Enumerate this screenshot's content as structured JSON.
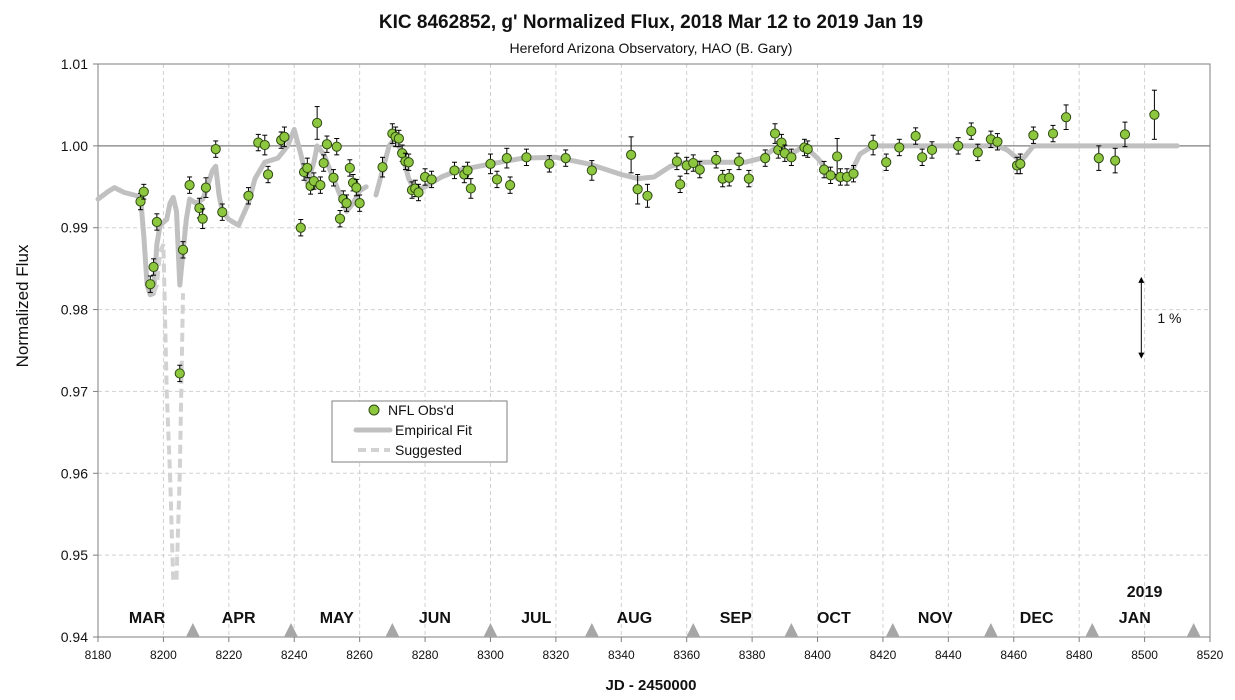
{
  "chart_data": {
    "type": "scatter",
    "title": "KIC 8462852, g' Normalized Flux, 2018 Mar 12 to 2019 Jan 19",
    "subtitle": "Hereford Arizona Observatory, HAO (B. Gary)",
    "xlabel": "JD - 2450000",
    "ylabel": "Normalized Flux",
    "xlim": [
      8180,
      8520
    ],
    "ylim": [
      0.94,
      1.01
    ],
    "x_ticks": [
      8180,
      8200,
      8220,
      8240,
      8260,
      8280,
      8300,
      8320,
      8340,
      8360,
      8380,
      8400,
      8420,
      8440,
      8460,
      8480,
      8500,
      8520
    ],
    "y_ticks": [
      0.94,
      0.95,
      0.96,
      0.97,
      0.98,
      0.99,
      1.0,
      1.01
    ],
    "y_tick_labels": [
      "0.94",
      "0.95",
      "0.96",
      "0.97",
      "0.98",
      "0.99",
      "1.00",
      "1.01"
    ],
    "grid": "dashed vertical and horizontal",
    "legend": {
      "position": "center-left",
      "entries": [
        "NFL Obs'd",
        "Empirical Fit",
        "Suggested"
      ]
    },
    "colors": {
      "obs_fill": "#8dc63f",
      "obs_stroke": "#2e4a10",
      "fit": "#c0c0c0",
      "suggested": "#d2d2d2",
      "month_marker": "#a6a6a6"
    },
    "month_labels": [
      {
        "label": "MAR",
        "x": 8195
      },
      {
        "label": "APR",
        "x": 8223
      },
      {
        "label": "MAY",
        "x": 8253
      },
      {
        "label": "JUN",
        "x": 8283
      },
      {
        "label": "JUL",
        "x": 8314
      },
      {
        "label": "AUG",
        "x": 8344
      },
      {
        "label": "SEP",
        "x": 8375
      },
      {
        "label": "OCT",
        "x": 8405
      },
      {
        "label": "NOV",
        "x": 8436
      },
      {
        "label": "DEC",
        "x": 8467
      },
      {
        "label": "JAN",
        "x": 8497
      }
    ],
    "year_label": {
      "label": "2019",
      "x": 8500
    },
    "month_markers_x": [
      8209,
      8239,
      8270,
      8300,
      8331,
      8362,
      8392,
      8423,
      8453,
      8484,
      8515
    ],
    "annotation": {
      "label": "1 %",
      "x": 8499,
      "y_from": 0.984,
      "y_to": 0.974
    },
    "series": [
      {
        "name": "NFL Obs'd",
        "type": "scatter",
        "points": [
          [
            8193,
            0.9932,
            0.001
          ],
          [
            8194,
            0.9944,
            0.0009
          ],
          [
            8196,
            0.9831,
            0.001
          ],
          [
            8197,
            0.9852,
            0.001
          ],
          [
            8198,
            0.9907,
            0.001
          ],
          [
            8205,
            0.9722,
            0.001
          ],
          [
            8206,
            0.9873,
            0.001
          ],
          [
            8208,
            0.9952,
            0.001
          ],
          [
            8211,
            0.9924,
            0.0012
          ],
          [
            8212,
            0.9911,
            0.0012
          ],
          [
            8213,
            0.9949,
            0.0012
          ],
          [
            8216,
            0.9996,
            0.001
          ],
          [
            8218,
            0.9919,
            0.001
          ],
          [
            8226,
            0.9939,
            0.001
          ],
          [
            8229,
            1.0004,
            0.001
          ],
          [
            8231,
            1.0001,
            0.0012
          ],
          [
            8232,
            0.9965,
            0.001
          ],
          [
            8236,
            1.0007,
            0.001
          ],
          [
            8237,
            1.0011,
            0.0012
          ],
          [
            8242,
            0.99,
            0.001
          ],
          [
            8243,
            0.9968,
            0.001
          ],
          [
            8244,
            0.9973,
            0.0012
          ],
          [
            8245,
            0.9951,
            0.001
          ],
          [
            8246,
            0.9957,
            0.001
          ],
          [
            8247,
            1.0028,
            0.002
          ],
          [
            8248,
            0.9952,
            0.001
          ],
          [
            8249,
            0.9979,
            0.001
          ],
          [
            8250,
            1.0002,
            0.001
          ],
          [
            8252,
            0.9961,
            0.001
          ],
          [
            8253,
            0.9999,
            0.001
          ],
          [
            8254,
            0.9911,
            0.001
          ],
          [
            8255,
            0.9935,
            0.001
          ],
          [
            8256,
            0.993,
            0.001
          ],
          [
            8257,
            0.9973,
            0.001
          ],
          [
            8258,
            0.9955,
            0.001
          ],
          [
            8259,
            0.9949,
            0.001
          ],
          [
            8260,
            0.993,
            0.001
          ],
          [
            8267,
            0.9974,
            0.0012
          ],
          [
            8270,
            1.0015,
            0.0012
          ],
          [
            8271,
            1.0011,
            0.0012
          ],
          [
            8272,
            1.0009,
            0.001
          ],
          [
            8273,
            0.9991,
            0.001
          ],
          [
            8274,
            0.9981,
            0.001
          ],
          [
            8275,
            0.998,
            0.001
          ],
          [
            8276,
            0.9946,
            0.001
          ],
          [
            8277,
            0.9948,
            0.001
          ],
          [
            8278,
            0.9943,
            0.001
          ],
          [
            8280,
            0.9962,
            0.001
          ],
          [
            8282,
            0.9959,
            0.001
          ],
          [
            8289,
            0.997,
            0.001
          ],
          [
            8292,
            0.9965,
            0.001
          ],
          [
            8293,
            0.997,
            0.001
          ],
          [
            8294,
            0.9948,
            0.0012
          ],
          [
            8300,
            0.9978,
            0.0012
          ],
          [
            8302,
            0.9959,
            0.001
          ],
          [
            8305,
            0.9985,
            0.0012
          ],
          [
            8306,
            0.9952,
            0.001
          ],
          [
            8311,
            0.9986,
            0.001
          ],
          [
            8318,
            0.9978,
            0.001
          ],
          [
            8323,
            0.9985,
            0.001
          ],
          [
            8331,
            0.997,
            0.0012
          ],
          [
            8343,
            0.9989,
            0.0022
          ],
          [
            8345,
            0.9947,
            0.0018
          ],
          [
            8348,
            0.9939,
            0.0014
          ],
          [
            8357,
            0.9981,
            0.001
          ],
          [
            8358,
            0.9953,
            0.001
          ],
          [
            8360,
            0.9976,
            0.001
          ],
          [
            8362,
            0.9979,
            0.001
          ],
          [
            8364,
            0.9971,
            0.001
          ],
          [
            8369,
            0.9983,
            0.001
          ],
          [
            8371,
            0.996,
            0.001
          ],
          [
            8373,
            0.9961,
            0.001
          ],
          [
            8376,
            0.9981,
            0.001
          ],
          [
            8379,
            0.996,
            0.001
          ],
          [
            8384,
            0.9985,
            0.001
          ],
          [
            8387,
            1.0015,
            0.0012
          ],
          [
            8388,
            0.9995,
            0.001
          ],
          [
            8389,
            1.0004,
            0.001
          ],
          [
            8390,
            0.9991,
            0.001
          ],
          [
            8392,
            0.9986,
            0.001
          ],
          [
            8396,
            0.9998,
            0.001
          ],
          [
            8397,
            0.9996,
            0.001
          ],
          [
            8402,
            0.9971,
            0.001
          ],
          [
            8404,
            0.9964,
            0.001
          ],
          [
            8406,
            0.9987,
            0.0022
          ],
          [
            8407,
            0.9962,
            0.001
          ],
          [
            8409,
            0.9962,
            0.001
          ],
          [
            8411,
            0.9966,
            0.001
          ],
          [
            8417,
            1.0001,
            0.0012
          ],
          [
            8421,
            0.998,
            0.001
          ],
          [
            8425,
            0.9998,
            0.001
          ],
          [
            8430,
            1.0012,
            0.001
          ],
          [
            8432,
            0.9986,
            0.001
          ],
          [
            8435,
            0.9995,
            0.001
          ],
          [
            8443,
            1.0,
            0.001
          ],
          [
            8447,
            1.0018,
            0.001
          ],
          [
            8449,
            0.9992,
            0.001
          ],
          [
            8453,
            1.0008,
            0.001
          ],
          [
            8455,
            1.0005,
            0.001
          ],
          [
            8461,
            0.9976,
            0.001
          ],
          [
            8462,
            0.9978,
            0.0012
          ],
          [
            8466,
            1.0013,
            0.001
          ],
          [
            8472,
            1.0015,
            0.001
          ],
          [
            8476,
            1.0035,
            0.0015
          ],
          [
            8486,
            0.9985,
            0.0015
          ],
          [
            8491,
            0.9982,
            0.0015
          ],
          [
            8494,
            1.0014,
            0.0015
          ],
          [
            8503,
            1.0038,
            0.003
          ]
        ]
      },
      {
        "name": "Empirical Fit",
        "type": "line",
        "points": [
          [
            8180,
            0.9935
          ],
          [
            8183,
            0.9944
          ],
          [
            8185,
            0.9949
          ],
          [
            8188,
            0.9943
          ],
          [
            8191,
            0.994
          ],
          [
            8193,
            0.9938
          ],
          [
            8194,
            0.989
          ],
          [
            8195,
            0.983
          ],
          [
            8196,
            0.9818
          ],
          [
            8197,
            0.982
          ],
          [
            8198,
            0.988
          ],
          [
            8199,
            0.9903
          ],
          [
            8201,
            0.991
          ],
          [
            8202,
            0.993
          ],
          [
            8203,
            0.9937
          ],
          [
            8204,
            0.992
          ],
          [
            8205,
            0.983
          ],
          [
            8206,
            0.987
          ],
          [
            8207,
            0.991
          ],
          [
            8208,
            0.9935
          ],
          [
            8210,
            0.993
          ],
          [
            8212,
            0.9935
          ],
          [
            8213,
            0.9945
          ],
          [
            8215,
            0.997
          ],
          [
            8216,
            0.9975
          ],
          [
            8217,
            0.994
          ],
          [
            8218,
            0.992
          ],
          [
            8220,
            0.991
          ],
          [
            8223,
            0.9903
          ],
          [
            8226,
            0.993
          ],
          [
            8228,
            0.996
          ],
          [
            8231,
            0.998
          ],
          [
            8235,
            0.9985
          ],
          [
            8238,
            1.0
          ],
          [
            8240,
            1.002
          ],
          [
            8242,
            0.999
          ],
          [
            8244,
            0.9955
          ],
          [
            8246,
            0.998
          ],
          [
            8247,
            1.0
          ],
          [
            8249,
            0.999
          ],
          [
            8252,
            0.996
          ],
          [
            8254,
            0.994
          ],
          [
            8256,
            0.992
          ],
          [
            8258,
            0.993
          ],
          [
            8260,
            0.9945
          ],
          [
            8262,
            0.995
          ]
        ]
      },
      {
        "name": "Empirical Fit (cont.)",
        "type": "line",
        "points": [
          [
            8265,
            0.994
          ],
          [
            8267,
            0.997
          ],
          [
            8269,
            1.0
          ],
          [
            8271,
            1.001
          ],
          [
            8273,
            0.999
          ],
          [
            8275,
            0.996
          ],
          [
            8277,
            0.9945
          ],
          [
            8280,
            0.995
          ],
          [
            8285,
            0.9962
          ],
          [
            8290,
            0.997
          ],
          [
            8300,
            0.9978
          ],
          [
            8310,
            0.9985
          ],
          [
            8320,
            0.9986
          ],
          [
            8330,
            0.9978
          ],
          [
            8340,
            0.9965
          ],
          [
            8345,
            0.996
          ],
          [
            8350,
            0.9962
          ],
          [
            8355,
            0.9975
          ],
          [
            8360,
            0.998
          ],
          [
            8370,
            0.998
          ],
          [
            8378,
            0.998
          ],
          [
            8383,
            0.9985
          ],
          [
            8388,
            1.0
          ],
          [
            8392,
            0.999
          ],
          [
            8396,
            1.0
          ],
          [
            8400,
            0.9985
          ],
          [
            8404,
            0.9965
          ],
          [
            8407,
            0.9958
          ],
          [
            8410,
            0.9965
          ],
          [
            8413,
            0.999
          ],
          [
            8417,
            1.0
          ],
          [
            8422,
            1.0
          ],
          [
            8430,
            1.0
          ],
          [
            8440,
            1.0
          ],
          [
            8450,
            1.0
          ],
          [
            8455,
            1.0
          ],
          [
            8458,
            0.9995
          ],
          [
            8461,
            0.9985
          ],
          [
            8463,
            0.9985
          ],
          [
            8466,
            1.0
          ],
          [
            8470,
            1.0
          ],
          [
            8480,
            1.0
          ],
          [
            8490,
            1.0
          ],
          [
            8500,
            1.0
          ],
          [
            8510,
            1.0
          ]
        ]
      },
      {
        "name": "Suggested",
        "type": "line",
        "points": [
          [
            8197,
            0.982
          ],
          [
            8198,
            0.983
          ],
          [
            8199,
            0.987
          ],
          [
            8200,
            0.988
          ],
          [
            8201,
            0.97
          ],
          [
            8202,
            0.96
          ],
          [
            8203,
            0.947
          ]
        ]
      },
      {
        "name": "Suggested (cont.)",
        "type": "line",
        "points": [
          [
            8204,
            0.947
          ],
          [
            8205,
            0.96
          ],
          [
            8206,
            0.982
          ]
        ]
      }
    ]
  }
}
